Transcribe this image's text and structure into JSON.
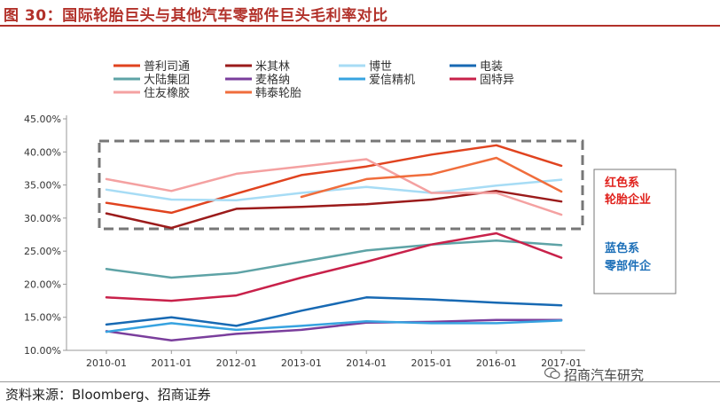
{
  "header": {
    "title": "图 30：国际轮胎巨头与其他汽车零部件巨头毛利率对比"
  },
  "footer": {
    "source": "资料来源：Bloomberg、招商证券",
    "watermark": "招商汽车研究"
  },
  "annotations": {
    "red_group": [
      "红色系",
      "轮胎企业"
    ],
    "blue_group": [
      "蓝色系",
      "零部件企"
    ]
  },
  "chart_data": {
    "type": "line",
    "x": [
      "2010-01",
      "2011-01",
      "2012-01",
      "2013-01",
      "2014-01",
      "2015-01",
      "2016-01",
      "2017-01"
    ],
    "ylim": [
      0.1,
      0.45
    ],
    "yticks": [
      "10.00%",
      "15.00%",
      "20.00%",
      "25.00%",
      "30.00%",
      "35.00%",
      "40.00%",
      "45.00%"
    ],
    "legend_position": "top",
    "grid": false,
    "series": [
      {
        "name": "普利司通",
        "color": "#e0431f",
        "values": [
          0.323,
          0.308,
          0.337,
          0.365,
          0.378,
          0.396,
          0.41,
          0.379
        ]
      },
      {
        "name": "米其林",
        "color": "#9b1b1b",
        "values": [
          0.307,
          0.285,
          0.314,
          0.317,
          0.321,
          0.328,
          0.341,
          0.325
        ]
      },
      {
        "name": "博世",
        "color": "#a7dcf5",
        "values": [
          0.343,
          0.328,
          0.327,
          0.338,
          0.347,
          0.338,
          0.349,
          0.358
        ]
      },
      {
        "name": "电装",
        "color": "#1769b3",
        "values": [
          0.139,
          0.15,
          0.137,
          0.16,
          0.18,
          0.177,
          0.172,
          0.168
        ]
      },
      {
        "name": "大陆集团",
        "color": "#5ea3a6",
        "values": [
          0.223,
          0.21,
          0.217,
          0.234,
          0.251,
          0.26,
          0.266,
          0.259
        ]
      },
      {
        "name": "麦格纳",
        "color": "#7a3e9c",
        "values": [
          0.129,
          0.115,
          0.125,
          0.131,
          0.142,
          0.143,
          0.146,
          0.146
        ]
      },
      {
        "name": "爱信精机",
        "color": "#37a3e0",
        "values": [
          0.128,
          0.141,
          0.131,
          0.137,
          0.144,
          0.141,
          0.141,
          0.145
        ]
      },
      {
        "name": "固特异",
        "color": "#c8214a",
        "values": [
          0.18,
          0.175,
          0.183,
          0.21,
          0.234,
          0.26,
          0.277,
          0.24
        ]
      },
      {
        "name": "住友橡胶",
        "color": "#f4a1a1",
        "values": [
          0.359,
          0.341,
          0.367,
          0.378,
          0.389,
          0.338,
          0.338,
          0.305
        ]
      },
      {
        "name": "韩泰轮胎",
        "color": "#f06d3c",
        "values": [
          null,
          null,
          null,
          0.332,
          0.359,
          0.366,
          0.391,
          0.34
        ]
      }
    ]
  }
}
